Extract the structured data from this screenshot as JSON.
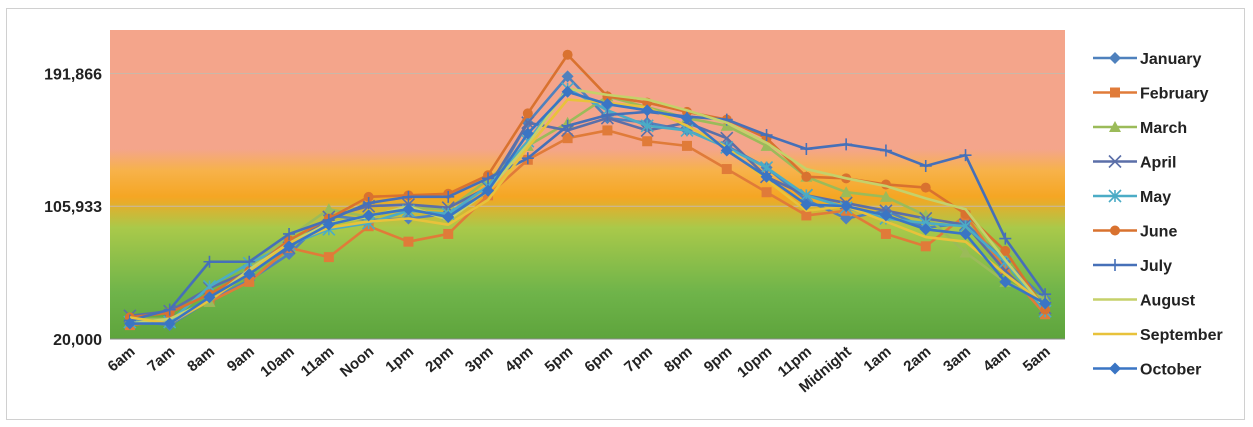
{
  "chart_data": {
    "type": "line",
    "title": "",
    "xlabel": "",
    "ylabel": "",
    "ylim": [
      20000,
      220000
    ],
    "yticks": [
      20000,
      105933,
      191866
    ],
    "ytick_labels": [
      "20,000",
      "105,933",
      "191,866"
    ],
    "grid": "horizontal",
    "legend_position": "right",
    "background_bands": [
      {
        "from": 20000,
        "to": 105933,
        "color": "#6fb44a",
        "label": ""
      },
      {
        "from": 105933,
        "to": 135000,
        "color": "#f5a623",
        "label": ""
      },
      {
        "from": 135000,
        "to": 220000,
        "color": "#f4a58b",
        "label": ""
      }
    ],
    "categories": [
      "6am",
      "7am",
      "8am",
      "9am",
      "10am",
      "11am",
      "Noon",
      "1pm",
      "2pm",
      "3pm",
      "4pm",
      "5pm",
      "6pm",
      "7pm",
      "8pm",
      "9pm",
      "10pm",
      "11pm",
      "Midnight",
      "1am",
      "2am",
      "3am",
      "4am",
      "5am"
    ],
    "series": [
      {
        "name": "January",
        "color": "#4f81bd",
        "marker": "diamond",
        "values": [
          32000,
          29000,
          45000,
          58000,
          75000,
          100000,
          97000,
          98000,
          101000,
          115000,
          160000,
          190000,
          163000,
          160000,
          155000,
          145000,
          131000,
          110000,
          98000,
          103000,
          92000,
          95000,
          70000,
          46000
        ]
      },
      {
        "name": "February",
        "color": "#e07b39",
        "marker": "square",
        "values": [
          29000,
          32000,
          44000,
          57000,
          79000,
          73000,
          93000,
          83000,
          88000,
          113000,
          136000,
          150000,
          155000,
          148000,
          145000,
          130000,
          115000,
          100000,
          103000,
          88000,
          80000,
          100000,
          65000,
          36000
        ]
      },
      {
        "name": "March",
        "color": "#9bbb59",
        "marker": "triangle",
        "values": [
          33000,
          33000,
          44000,
          66000,
          86000,
          104000,
          99000,
          105000,
          104000,
          123000,
          145000,
          160000,
          177000,
          170000,
          163000,
          158000,
          145000,
          125000,
          115000,
          112000,
          100000,
          76000,
          57000,
          46000
        ]
      },
      {
        "name": "April",
        "color": "#5b6fa8",
        "marker": "x",
        "values": [
          35000,
          38000,
          53000,
          64000,
          79000,
          99000,
          106000,
          107000,
          105000,
          118000,
          160000,
          155000,
          163000,
          155000,
          160000,
          150000,
          125000,
          113000,
          108000,
          103000,
          98000,
          94000,
          64000,
          40000
        ]
      },
      {
        "name": "May",
        "color": "#4bacc6",
        "marker": "asterisk",
        "values": [
          31000,
          31000,
          54000,
          69000,
          81000,
          91000,
          95000,
          103000,
          101000,
          119000,
          148000,
          182000,
          168000,
          158000,
          155000,
          144000,
          131000,
          113000,
          105000,
          98000,
          95000,
          93000,
          70000,
          38000
        ]
      },
      {
        "name": "June",
        "color": "#d9722f",
        "marker": "circle",
        "values": [
          34000,
          37000,
          49000,
          64000,
          84000,
          98000,
          112000,
          113000,
          114000,
          126000,
          166000,
          204000,
          177000,
          173000,
          167000,
          162000,
          150000,
          125000,
          124000,
          120000,
          118000,
          101000,
          77000,
          39000
        ]
      },
      {
        "name": "July",
        "color": "#4670b8",
        "marker": "plus",
        "values": [
          32000,
          39000,
          70000,
          70000,
          88000,
          97000,
          108000,
          112000,
          112000,
          124000,
          137000,
          158000,
          165000,
          167000,
          164000,
          162000,
          152000,
          143000,
          146000,
          142000,
          132000,
          139000,
          85000,
          49000
        ]
      },
      {
        "name": "August",
        "color": "#c5d16a",
        "marker": "none",
        "values": [
          30000,
          33000,
          45000,
          65000,
          82000,
          95000,
          99000,
          106000,
          97000,
          116000,
          146000,
          182000,
          178000,
          175000,
          168000,
          160000,
          147000,
          130000,
          124000,
          119000,
          111000,
          104000,
          71000,
          40000
        ]
      },
      {
        "name": "September",
        "color": "#e8c23b",
        "marker": "none",
        "values": [
          34000,
          30000,
          45000,
          63000,
          82000,
          92000,
          96000,
          98000,
          94000,
          110000,
          144000,
          175000,
          173000,
          170000,
          158000,
          144000,
          123000,
          103000,
          106000,
          96000,
          86000,
          83000,
          62000,
          42000
        ]
      },
      {
        "name": "October",
        "color": "#3a75c4",
        "marker": "diamond",
        "values": [
          30000,
          30000,
          47000,
          62000,
          80000,
          94000,
          100000,
          104000,
          99000,
          116000,
          153000,
          180000,
          172000,
          168000,
          163000,
          142000,
          125000,
          107000,
          106000,
          100000,
          91000,
          88000,
          57000,
          43000
        ]
      }
    ]
  }
}
